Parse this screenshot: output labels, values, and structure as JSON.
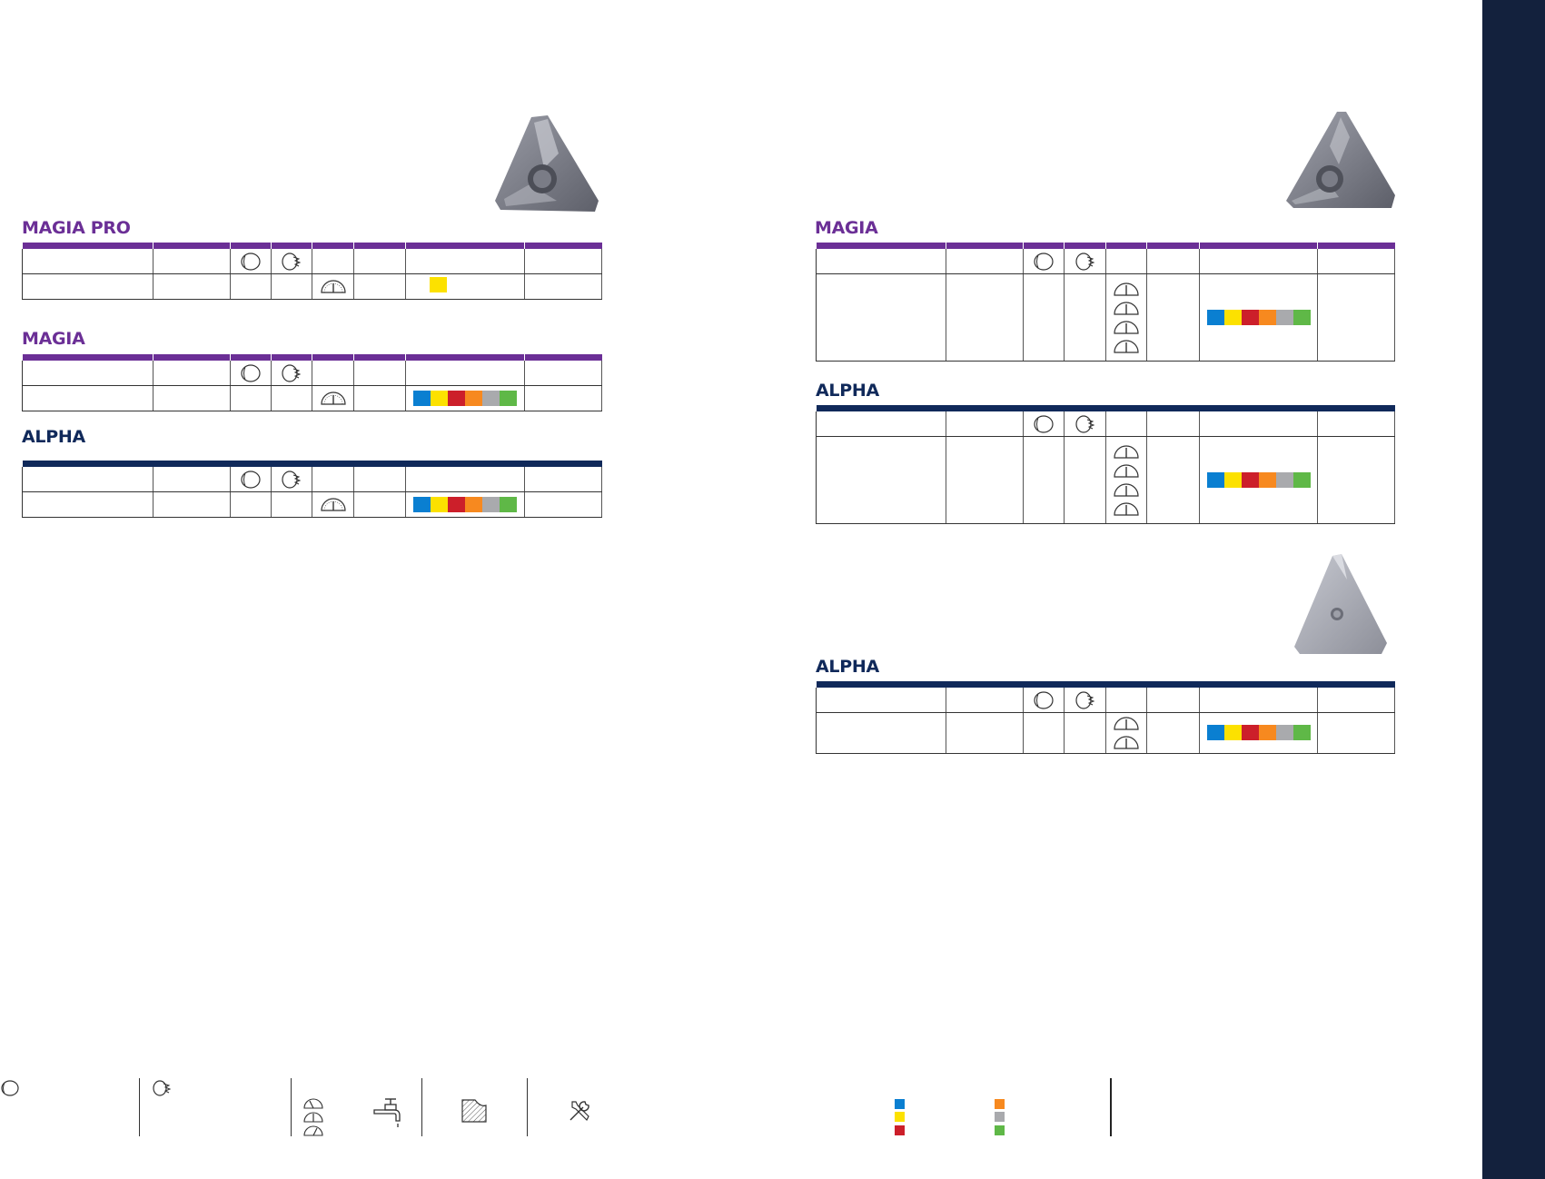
{
  "sections": {
    "magia_pro_left": {
      "title": "MAGIA PRO"
    },
    "magia_left": {
      "title": "MAGIA"
    },
    "alpha_left": {
      "title": "ALPHA"
    },
    "magia_right": {
      "title": "MAGIA"
    },
    "alpha_right_1": {
      "title": "ALPHA"
    },
    "alpha_right_2": {
      "title": "ALPHA"
    }
  },
  "colors": {
    "blue": "#0a7fd1",
    "yellow": "#fce100",
    "red": "#cc1f2a",
    "orange": "#f7891f",
    "grey": "#a9aaad",
    "green": "#5fb847",
    "purple": "#6b2f96",
    "navy": "#10295a",
    "sidebar": "#13213d"
  },
  "icons": {
    "external": "external-thread-icon",
    "internal": "internal-thread-icon",
    "speed": "speed-gauge-icon",
    "coolant": "coolant-tap-icon",
    "material": "hatched-material-icon",
    "tools": "tools-icon",
    "insert": "triangular-insert-image"
  }
}
